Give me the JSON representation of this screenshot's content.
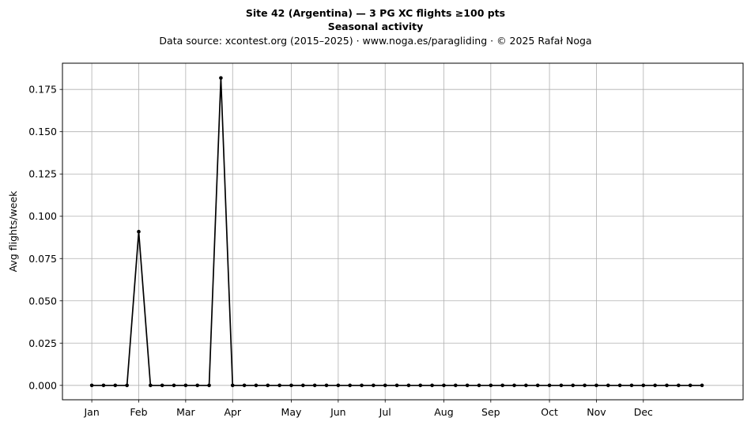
{
  "chart_data": {
    "type": "line",
    "title": "Site 42 (Argentina)  —  3 PG XC flights ≥100 pts",
    "subtitle": "Seasonal activity",
    "source_line": "Data source: xcontest.org (2015–2025)  ·  www.noga.es/paragliding  ·  © 2025 Rafał Noga",
    "xlabel": "",
    "ylabel": "Avg flights/week",
    "ylim": [
      -0.0085,
      0.1905
    ],
    "xlim": [
      -2.5,
      55.5
    ],
    "grid": true,
    "legend": "none",
    "line_color": "#000000",
    "y_ticks": [
      {
        "value": 0.0,
        "label": "0.000"
      },
      {
        "value": 0.025,
        "label": "0.025"
      },
      {
        "value": 0.05,
        "label": "0.050"
      },
      {
        "value": 0.075,
        "label": "0.075"
      },
      {
        "value": 0.1,
        "label": "0.100"
      },
      {
        "value": 0.125,
        "label": "0.125"
      },
      {
        "value": 0.15,
        "label": "0.150"
      },
      {
        "value": 0.175,
        "label": "0.175"
      }
    ],
    "x_ticks": [
      {
        "value": 0,
        "label": "Jan"
      },
      {
        "value": 4,
        "label": "Feb"
      },
      {
        "value": 8,
        "label": "Mar"
      },
      {
        "value": 12,
        "label": "Apr"
      },
      {
        "value": 17,
        "label": "May"
      },
      {
        "value": 21,
        "label": "Jun"
      },
      {
        "value": 25,
        "label": "Jul"
      },
      {
        "value": 30,
        "label": "Aug"
      },
      {
        "value": 34,
        "label": "Sep"
      },
      {
        "value": 39,
        "label": "Oct"
      },
      {
        "value": 43,
        "label": "Nov"
      },
      {
        "value": 47,
        "label": "Dec"
      }
    ],
    "series": [
      {
        "x": [
          0,
          1,
          2,
          3,
          4,
          5,
          6,
          7,
          8,
          9,
          10,
          11,
          12,
          13,
          14,
          15,
          16,
          17,
          18,
          19,
          20,
          21,
          22,
          23,
          24,
          25,
          26,
          27,
          28,
          29,
          30,
          31,
          32,
          33,
          34,
          35,
          36,
          37,
          38,
          39,
          40,
          41,
          42,
          43,
          44,
          45,
          46,
          47,
          48,
          49,
          50,
          51,
          52
        ],
        "values": [
          0,
          0,
          0,
          0,
          0.0909,
          0,
          0,
          0,
          0,
          0,
          0,
          0.1818,
          0,
          0,
          0,
          0,
          0,
          0,
          0,
          0,
          0,
          0,
          0,
          0,
          0,
          0,
          0,
          0,
          0,
          0,
          0,
          0,
          0,
          0,
          0,
          0,
          0,
          0,
          0,
          0,
          0,
          0,
          0,
          0,
          0,
          0,
          0,
          0,
          0,
          0,
          0,
          0,
          0
        ]
      }
    ]
  }
}
